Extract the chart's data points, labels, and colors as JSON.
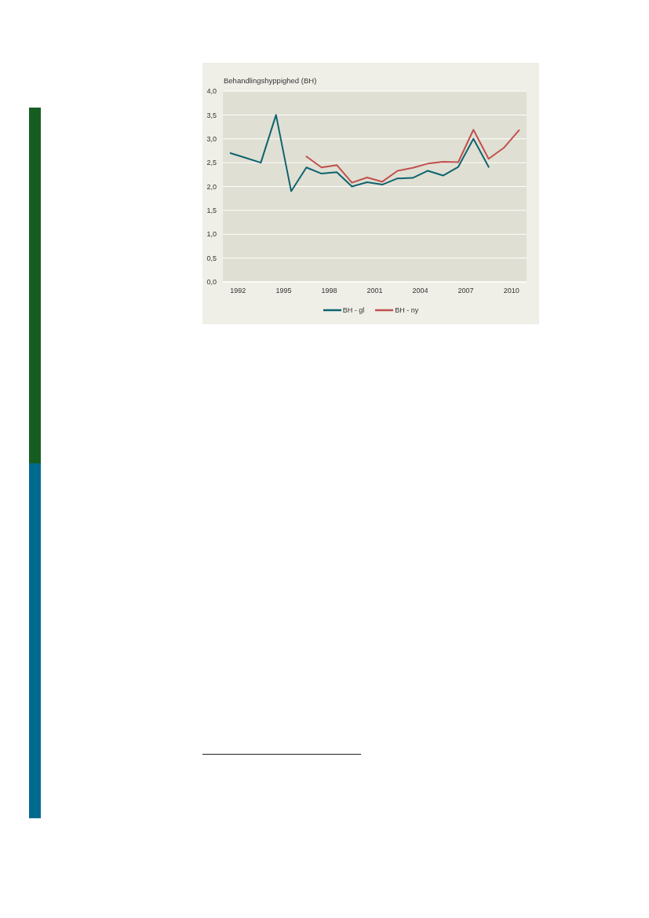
{
  "chart_data": {
    "type": "line",
    "ylabel": "Behandlingshyppighed (BH)",
    "x": [
      1991.5,
      1992.5,
      1993.5,
      1994.5,
      1995.5,
      1996.5,
      1997.5,
      1998.5,
      1999.5,
      2000.5,
      2001.5,
      2002.5,
      2003.5,
      2004.5,
      2005.5,
      2006.5,
      2007.5,
      2008.5,
      2009.5,
      2010.5
    ],
    "xlim": [
      1991,
      2011
    ],
    "xticks": [
      1992,
      1995,
      1998,
      2001,
      2004,
      2007,
      2010
    ],
    "ylim": [
      0,
      4
    ],
    "yticks": [
      {
        "value": 0,
        "label": "0,0"
      },
      {
        "value": 0.5,
        "label": "0,5"
      },
      {
        "value": 1,
        "label": "1,0"
      },
      {
        "value": 1.5,
        "label": "1,5"
      },
      {
        "value": 2,
        "label": "2,0"
      },
      {
        "value": 2.5,
        "label": "2,5"
      },
      {
        "value": 3,
        "label": "3,0"
      },
      {
        "value": 3.5,
        "label": "3,5"
      },
      {
        "value": 4,
        "label": "4,0"
      }
    ],
    "grid": "y",
    "legend": "bottom",
    "series": [
      {
        "name": "BH - gl",
        "color": "#0d6470",
        "values": [
          2.7,
          2.6,
          2.5,
          3.5,
          1.9,
          2.4,
          2.27,
          2.3,
          2.0,
          2.09,
          2.04,
          2.17,
          2.18,
          2.33,
          2.23,
          2.41,
          3.0,
          2.41,
          null,
          null
        ]
      },
      {
        "name": "BH - ny",
        "color": "#c0504d",
        "values": [
          null,
          null,
          null,
          null,
          null,
          2.63,
          2.4,
          2.45,
          2.08,
          2.19,
          2.1,
          2.33,
          2.39,
          2.48,
          2.52,
          2.51,
          3.19,
          2.58,
          2.81,
          3.18
        ]
      }
    ]
  }
}
